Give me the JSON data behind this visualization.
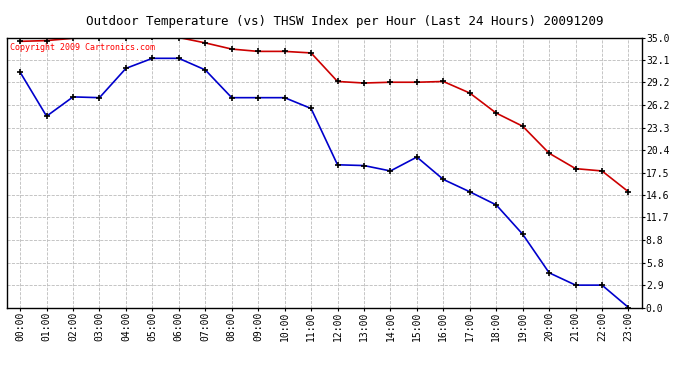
{
  "title": "Outdoor Temperature (vs) THSW Index per Hour (Last 24 Hours) 20091209",
  "copyright_text": "Copyright 2009 Cartronics.com",
  "hours": [
    "00:00",
    "01:00",
    "02:00",
    "03:00",
    "04:00",
    "05:00",
    "06:00",
    "07:00",
    "08:00",
    "09:00",
    "10:00",
    "11:00",
    "12:00",
    "13:00",
    "14:00",
    "15:00",
    "16:00",
    "17:00",
    "18:00",
    "19:00",
    "20:00",
    "21:00",
    "22:00",
    "23:00"
  ],
  "temp_red": [
    34.5,
    34.6,
    34.9,
    35.0,
    35.0,
    35.1,
    35.0,
    34.3,
    33.5,
    33.2,
    33.2,
    33.0,
    29.3,
    29.1,
    29.2,
    29.2,
    29.3,
    27.8,
    25.2,
    23.5,
    20.0,
    18.0,
    17.7,
    15.0
  ],
  "thsw_blue": [
    30.5,
    24.8,
    27.3,
    27.2,
    31.0,
    32.3,
    32.3,
    30.8,
    27.2,
    27.2,
    27.2,
    25.8,
    18.5,
    18.4,
    17.7,
    19.5,
    16.6,
    15.0,
    13.3,
    9.5,
    4.5,
    2.9,
    2.9,
    0.0
  ],
  "y_ticks": [
    0.0,
    2.9,
    5.8,
    8.8,
    11.7,
    14.6,
    17.5,
    20.4,
    23.3,
    26.2,
    29.2,
    32.1,
    35.0
  ],
  "ylim": [
    0.0,
    35.0
  ],
  "xlim": [
    -0.5,
    23.5
  ],
  "red_color": "#cc0000",
  "blue_color": "#0000cc",
  "bg_color": "#ffffff",
  "grid_color": "#bbbbbb",
  "title_fontsize": 9,
  "copyright_fontsize": 6,
  "tick_fontsize": 7,
  "marker_color": "#000000"
}
